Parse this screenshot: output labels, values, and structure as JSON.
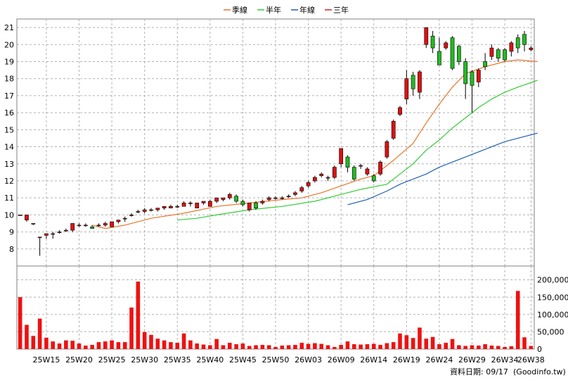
{
  "chart_data": {
    "type": "candlestick",
    "legend": [
      {
        "label": "季線",
        "color": "#e8752a"
      },
      {
        "label": "半年",
        "color": "#33cc33"
      },
      {
        "label": "年線",
        "color": "#1f5fb4"
      },
      {
        "label": "三年",
        "color": "#e81e1e"
      }
    ],
    "price_axis": {
      "min": 7,
      "max": 21.5,
      "ticks": [
        8,
        9,
        10,
        11,
        12,
        13,
        14,
        15,
        16,
        17,
        18,
        19,
        20,
        21
      ]
    },
    "volume_axis": {
      "min": 0,
      "max": 240000,
      "ticks": [
        0,
        50000,
        100000,
        150000,
        200000
      ],
      "tick_labels": [
        "0",
        "50,000",
        "100,000",
        "150,000",
        "200,000"
      ]
    },
    "x_tick_labels": [
      "25W15",
      "25W20",
      "25W25",
      "25W30",
      "25W35",
      "25W40",
      "25W45",
      "25W50",
      "26W03",
      "26W09",
      "26W14",
      "26W19",
      "26W24",
      "26W29",
      "26W34",
      "26W38"
    ],
    "x_tick_index": [
      4,
      9,
      14,
      19,
      24,
      29,
      34,
      39,
      44,
      49,
      54,
      59,
      64,
      69,
      74,
      78
    ],
    "candles": [
      [
        10,
        10,
        10,
        10
      ],
      [
        9.7,
        10,
        10,
        9.6
      ],
      [
        9.5,
        9.5,
        9.5,
        9.4
      ],
      [
        8.7,
        8.7,
        8.7,
        7.6
      ],
      [
        8.8,
        8.9,
        8.9,
        8.6
      ],
      [
        8.9,
        8.9,
        9.0,
        8.6
      ],
      [
        9.0,
        9.0,
        9.1,
        8.9
      ],
      [
        9.1,
        9.1,
        9.2,
        9.0
      ],
      [
        9.1,
        9.5,
        9.5,
        9.0
      ],
      [
        9.4,
        9.4,
        9.5,
        9.3
      ],
      [
        9.4,
        9.4,
        9.5,
        9.3
      ],
      [
        9.3,
        9.2,
        9.4,
        9.2
      ],
      [
        9.4,
        9.4,
        9.5,
        9.3
      ],
      [
        9.4,
        9.5,
        9.6,
        9.3
      ],
      [
        9.3,
        9.6,
        9.6,
        9.3
      ],
      [
        9.6,
        9.7,
        9.7,
        9.5
      ],
      [
        9.8,
        9.8,
        9.9,
        9.6
      ],
      [
        10.0,
        10.0,
        10.1,
        9.9
      ],
      [
        10.2,
        10.2,
        10.3,
        10.1
      ],
      [
        10.2,
        10.3,
        10.4,
        10.1
      ],
      [
        10.3,
        10.3,
        10.4,
        10.2
      ],
      [
        10.3,
        10.4,
        10.4,
        10.2
      ],
      [
        10.4,
        10.5,
        10.5,
        10.3
      ],
      [
        10.4,
        10.5,
        10.6,
        10.4
      ],
      [
        10.5,
        10.5,
        10.6,
        10.4
      ],
      [
        10.5,
        10.7,
        10.8,
        10.5
      ],
      [
        10.7,
        10.7,
        10.8,
        10.5
      ],
      [
        10.4,
        10.7,
        10.7,
        10.4
      ],
      [
        10.7,
        10.8,
        10.8,
        10.6
      ],
      [
        10.5,
        10.8,
        10.9,
        10.5
      ],
      [
        10.8,
        11.0,
        11.0,
        10.7
      ],
      [
        10.9,
        11.0,
        11.0,
        10.8
      ],
      [
        11.0,
        11.2,
        11.3,
        10.9
      ],
      [
        11.1,
        10.8,
        11.2,
        10.7
      ],
      [
        10.8,
        10.6,
        10.9,
        10.5
      ],
      [
        10.3,
        10.7,
        10.7,
        10.2
      ],
      [
        10.7,
        10.4,
        10.8,
        10.3
      ],
      [
        10.7,
        10.8,
        10.9,
        10.6
      ],
      [
        10.9,
        11.0,
        11.1,
        10.8
      ],
      [
        11.0,
        11.0,
        11.1,
        10.9
      ],
      [
        11.0,
        11.0,
        11.1,
        10.9
      ],
      [
        11.1,
        11.1,
        11.2,
        11.0
      ],
      [
        11.2,
        11.3,
        11.4,
        11.1
      ],
      [
        11.4,
        11.6,
        11.7,
        11.3
      ],
      [
        11.7,
        11.9,
        12.0,
        11.6
      ],
      [
        12.0,
        12.2,
        12.3,
        11.9
      ],
      [
        12.3,
        12.4,
        12.5,
        12.2
      ],
      [
        12.2,
        12.2,
        12.3,
        12.0
      ],
      [
        12.2,
        12.8,
        12.9,
        12.1
      ],
      [
        13.0,
        13.9,
        13.9,
        12.8
      ],
      [
        13.4,
        12.8,
        13.5,
        12.5
      ],
      [
        12.8,
        12.1,
        12.9,
        12.0
      ],
      [
        12.9,
        12.9,
        13.0,
        12.7
      ],
      [
        12.4,
        12.7,
        12.8,
        12.3
      ],
      [
        12.3,
        12.0,
        12.4,
        11.9
      ],
      [
        12.4,
        13.1,
        13.2,
        12.3
      ],
      [
        13.4,
        14.3,
        14.4,
        13.3
      ],
      [
        14.5,
        15.5,
        15.6,
        14.4
      ],
      [
        15.9,
        16.3,
        16.4,
        15.8
      ],
      [
        16.8,
        18.0,
        18.5,
        16.5
      ],
      [
        18.2,
        17.4,
        18.4,
        17.0
      ],
      [
        17.2,
        18.4,
        18.5,
        16.8
      ],
      [
        20.0,
        21.0,
        21.0,
        19.8
      ],
      [
        20.5,
        19.8,
        20.8,
        19.5
      ],
      [
        19.6,
        18.8,
        20.4,
        18.8
      ],
      [
        19.8,
        20.1,
        20.2,
        19.7
      ],
      [
        20.4,
        18.6,
        20.5,
        18.5
      ],
      [
        19.9,
        19.0,
        20.0,
        18.8
      ],
      [
        19.0,
        17.7,
        19.2,
        16.8
      ],
      [
        18.4,
        17.6,
        18.5,
        16.0
      ],
      [
        17.8,
        18.5,
        18.6,
        17.5
      ],
      [
        19.0,
        18.7,
        19.5,
        18.5
      ],
      [
        19.3,
        19.8,
        20.0,
        19.1
      ],
      [
        19.7,
        19.2,
        19.8,
        19.0
      ],
      [
        19.7,
        19.1,
        19.8,
        19.0
      ],
      [
        19.6,
        20.1,
        20.2,
        19.3
      ],
      [
        20.4,
        19.8,
        20.6,
        19.5
      ],
      [
        20.6,
        20.0,
        20.8,
        19.6
      ],
      [
        19.7,
        19.8,
        19.9,
        19.6
      ]
    ],
    "volumes": [
      150000,
      70000,
      38000,
      88000,
      33000,
      22000,
      16000,
      25000,
      24000,
      16000,
      10000,
      12000,
      20000,
      22000,
      25000,
      20000,
      20000,
      120000,
      195000,
      49000,
      41000,
      30000,
      25000,
      20000,
      18000,
      45000,
      25000,
      16000,
      13000,
      11000,
      29000,
      11000,
      18000,
      14000,
      16000,
      9000,
      11000,
      12000,
      11000,
      6000,
      10000,
      11000,
      12000,
      18000,
      15000,
      17000,
      15000,
      11000,
      6000,
      12000,
      22000,
      14000,
      13000,
      14000,
      15000,
      12000,
      17000,
      20000,
      45000,
      40000,
      32000,
      62000,
      30000,
      35000,
      14000,
      18000,
      29000,
      11000,
      9000,
      11000,
      10000,
      14000,
      10000,
      9000,
      6000,
      8000,
      168000,
      34000,
      9000
    ],
    "ma_season": [
      [
        11,
        9.4
      ],
      [
        13,
        9.2
      ],
      [
        16,
        9.4
      ],
      [
        20,
        9.8
      ],
      [
        25,
        10.1
      ],
      [
        30,
        10.5
      ],
      [
        35,
        10.7
      ],
      [
        40,
        10.9
      ],
      [
        43,
        11.0
      ],
      [
        46,
        11.3
      ],
      [
        49,
        11.7
      ],
      [
        52,
        12.1
      ],
      [
        54,
        12.3
      ],
      [
        57,
        13.2
      ],
      [
        60,
        14.2
      ],
      [
        62,
        15.4
      ],
      [
        64,
        16.5
      ],
      [
        66,
        17.5
      ],
      [
        68,
        18.3
      ],
      [
        71,
        18.7
      ],
      [
        74,
        19.0
      ],
      [
        76,
        19.1
      ],
      [
        79,
        19.0
      ]
    ],
    "ma_half": [
      [
        24,
        9.7
      ],
      [
        27,
        9.8
      ],
      [
        30,
        10.0
      ],
      [
        35,
        10.3
      ],
      [
        40,
        10.5
      ],
      [
        45,
        10.8
      ],
      [
        49,
        11.2
      ],
      [
        52,
        11.5
      ],
      [
        56,
        11.8
      ],
      [
        58,
        12.4
      ],
      [
        60,
        13.0
      ],
      [
        62,
        13.8
      ],
      [
        64,
        14.4
      ],
      [
        66,
        15.1
      ],
      [
        68,
        15.7
      ],
      [
        70,
        16.3
      ],
      [
        72,
        16.8
      ],
      [
        74,
        17.2
      ],
      [
        76,
        17.5
      ],
      [
        79,
        17.9
      ]
    ],
    "ma_year": [
      [
        50,
        10.6
      ],
      [
        53,
        10.9
      ],
      [
        56,
        11.4
      ],
      [
        58,
        11.8
      ],
      [
        60,
        12.1
      ],
      [
        62,
        12.4
      ],
      [
        64,
        12.8
      ],
      [
        66,
        13.1
      ],
      [
        68,
        13.4
      ],
      [
        70,
        13.7
      ],
      [
        72,
        14.0
      ],
      [
        74,
        14.3
      ],
      [
        76,
        14.5
      ],
      [
        79,
        14.8
      ]
    ]
  },
  "footer": {
    "date_label": "資料日期: 09/17",
    "source": "(Goodinfo.tw)"
  }
}
